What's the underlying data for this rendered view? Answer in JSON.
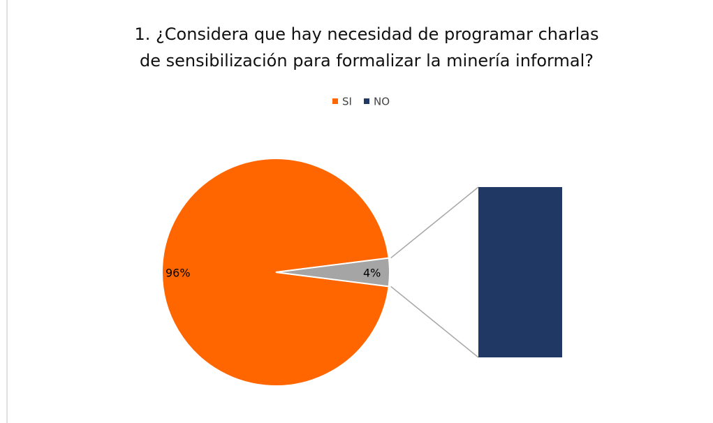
{
  "chart_data": {
    "type": "pie-of-bar",
    "title": [
      "1. ¿Considera que hay necesidad de programar charlas",
      "de sensibilización para formalizar la minería informal?"
    ],
    "categories": [
      "SI",
      "NO"
    ],
    "values": [
      96,
      4
    ],
    "value_labels": [
      "96%",
      "4%"
    ],
    "colors": [
      "#ff6600",
      "#203864"
    ],
    "secondary_slice_color": "#a5a5a5",
    "legend": "top"
  }
}
